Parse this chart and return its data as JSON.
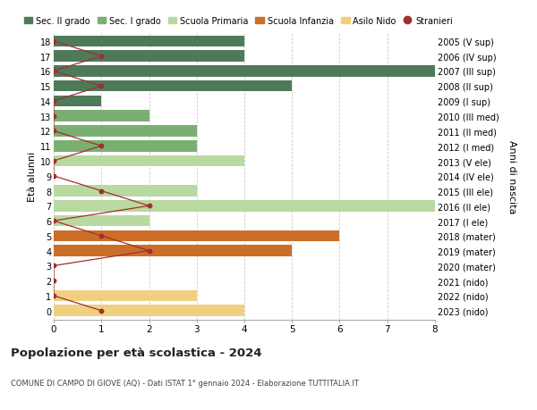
{
  "ages": [
    18,
    17,
    16,
    15,
    14,
    13,
    12,
    11,
    10,
    9,
    8,
    7,
    6,
    5,
    4,
    3,
    2,
    1,
    0
  ],
  "years_labels": [
    "2005 (V sup)",
    "2006 (IV sup)",
    "2007 (III sup)",
    "2008 (II sup)",
    "2009 (I sup)",
    "2010 (III med)",
    "2011 (II med)",
    "2012 (I med)",
    "2013 (V ele)",
    "2014 (IV ele)",
    "2015 (III ele)",
    "2016 (II ele)",
    "2017 (I ele)",
    "2018 (mater)",
    "2019 (mater)",
    "2020 (mater)",
    "2021 (nido)",
    "2022 (nido)",
    "2023 (nido)"
  ],
  "bar_values": [
    4,
    4,
    8,
    5,
    1,
    2,
    3,
    3,
    4,
    0,
    3,
    8,
    2,
    6,
    5,
    0,
    0,
    3,
    4
  ],
  "bar_colors": [
    "#4e7a5a",
    "#4e7a5a",
    "#4e7a5a",
    "#4e7a5a",
    "#4e7a5a",
    "#7aaf72",
    "#7aaf72",
    "#7aaf72",
    "#b8d9a0",
    "#b8d9a0",
    "#b8d9a0",
    "#b8d9a0",
    "#b8d9a0",
    "#cc6e28",
    "#cc6e28",
    "#cc6e28",
    "#f0d080",
    "#f0d080",
    "#f0d080"
  ],
  "stranieri_values": [
    0,
    1,
    0,
    1,
    0,
    0,
    0,
    1,
    0,
    0,
    1,
    2,
    0,
    1,
    2,
    0,
    0,
    0,
    1
  ],
  "stranieri_color": "#a03030",
  "legend_labels": [
    "Sec. II grado",
    "Sec. I grado",
    "Scuola Primaria",
    "Scuola Infanzia",
    "Asilo Nido",
    "Stranieri"
  ],
  "legend_colors": [
    "#4e7a5a",
    "#7aaf72",
    "#b8d9a0",
    "#cc6e28",
    "#f0d080",
    "#a03030"
  ],
  "title": "Popolazione per età scolastica - 2024",
  "subtitle": "COMUNE DI CAMPO DI GIOVE (AQ) - Dati ISTAT 1° gennaio 2024 - Elaborazione TUTTITALIA.IT",
  "ylabel_left": "Età alunni",
  "ylabel_right": "Anni di nascita",
  "xlim": [
    0,
    8
  ],
  "bar_height": 0.75,
  "bg_color": "#ffffff",
  "grid_color": "#cccccc"
}
